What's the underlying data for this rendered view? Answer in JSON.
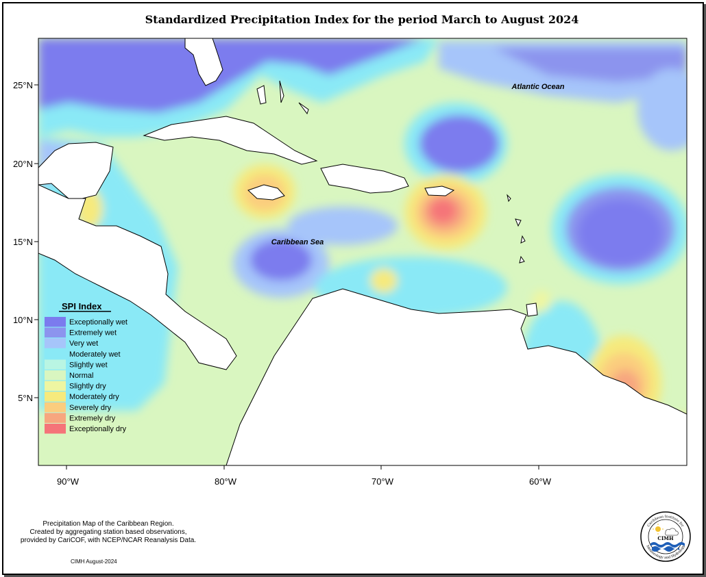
{
  "title": "Standardized Precipitation Index for the period March to August 2024",
  "axes": {
    "x_ticks": [
      "90°W",
      "80°W",
      "70°W",
      "60°W"
    ],
    "y_ticks": [
      "25°N",
      "20°N",
      "15°N",
      "10°N",
      "5°N"
    ]
  },
  "labels": {
    "atlantic": "Atlantic Ocean",
    "caribbean": "Caribbean Sea"
  },
  "legend": {
    "title": "SPI Index",
    "items": [
      {
        "label": "Exceptionally wet",
        "color": "#7b7bee"
      },
      {
        "label": "Extremely wet",
        "color": "#8c94ee"
      },
      {
        "label": "Very wet",
        "color": "#a6c5fa"
      },
      {
        "label": "Moderately wet",
        "color": "#8ae9f6"
      },
      {
        "label": "Slightly wet",
        "color": "#b9f5e3"
      },
      {
        "label": "Normal",
        "color": "#d9f6c0"
      },
      {
        "label": "Slightly dry",
        "color": "#eef6a2"
      },
      {
        "label": "Moderately dry",
        "color": "#f6ea7d"
      },
      {
        "label": "Severely dry",
        "color": "#fbcd7e"
      },
      {
        "label": "Extremely dry",
        "color": "#f7a67f"
      },
      {
        "label": "Exceptionally dry",
        "color": "#f57479"
      }
    ]
  },
  "footnote": {
    "line1": "Precipitation Map of the Caribbean Region.",
    "line2": "Created by aggregating station based observations,",
    "line3": "provided by CariCOF, with NCEP/NCAR Reanalysis Data."
  },
  "credit": "CIMH August-2024",
  "logo": {
    "ring_top": "Caribbean Institute for",
    "ring_bottom": "Meteorology and Hydrology",
    "acronym": "CIMH"
  }
}
